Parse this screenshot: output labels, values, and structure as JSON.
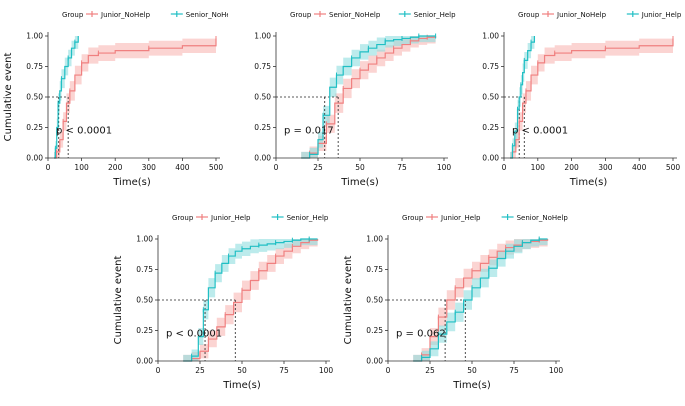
{
  "colors": {
    "red": "#F08080",
    "red_band": "#F8B8B4",
    "cyan": "#20BFC4",
    "cyan_band": "#8FDEE0",
    "axis": "#333333",
    "text": "#111111"
  },
  "chart_data": [
    {
      "type": "line",
      "legend_title": "Group",
      "legend": [
        "Junior_NoHelp",
        "Senior_NoHelp"
      ],
      "ylabel": "Cumulative event",
      "xlabel": "Time(s)",
      "xlim": [
        0,
        500
      ],
      "ylim": [
        0,
        1
      ],
      "xticks": [
        "0",
        "100",
        "200",
        "300",
        "400",
        "500"
      ],
      "yticks": [
        "0.00",
        "0.25",
        "0.50",
        "0.75",
        "1.00"
      ],
      "pvalue": "p < 0.0001",
      "medians": [
        32,
        60
      ],
      "series": [
        {
          "name": "Junior_NoHelp",
          "color": "red",
          "x": [
            18,
            25,
            35,
            45,
            55,
            65,
            80,
            100,
            120,
            150,
            200,
            300,
            400,
            500
          ],
          "y": [
            0,
            0.05,
            0.15,
            0.3,
            0.45,
            0.55,
            0.68,
            0.78,
            0.84,
            0.86,
            0.88,
            0.9,
            0.92,
            0.98
          ]
        },
        {
          "name": "Senior_NoHelp",
          "color": "cyan",
          "x": [
            18,
            22,
            26,
            30,
            35,
            40,
            50,
            60,
            70,
            80,
            90
          ],
          "y": [
            0,
            0.08,
            0.25,
            0.45,
            0.55,
            0.65,
            0.75,
            0.82,
            0.9,
            0.95,
            1.0
          ]
        }
      ]
    },
    {
      "type": "line",
      "legend_title": "Group",
      "legend": [
        "Senior_NoHelp",
        "Senior_Help"
      ],
      "ylabel": "",
      "xlabel": "Time(s)",
      "xlim": [
        0,
        100
      ],
      "ylim": [
        0,
        1
      ],
      "xticks": [
        "0",
        "25",
        "50",
        "75",
        "100"
      ],
      "yticks": [
        "0.00",
        "0.25",
        "0.50",
        "0.75",
        "1.00"
      ],
      "pvalue": "p = 0.017",
      "medians": [
        29,
        37
      ],
      "series": [
        {
          "name": "Senior_NoHelp",
          "color": "red",
          "x": [
            15,
            20,
            25,
            30,
            35,
            40,
            45,
            50,
            55,
            60,
            65,
            70,
            75,
            80,
            85,
            90,
            95
          ],
          "y": [
            0,
            0.04,
            0.12,
            0.28,
            0.45,
            0.57,
            0.65,
            0.72,
            0.77,
            0.82,
            0.86,
            0.9,
            0.93,
            0.96,
            0.98,
            0.99,
            1.0
          ]
        },
        {
          "name": "Senior_Help",
          "color": "cyan",
          "x": [
            15,
            20,
            25,
            28,
            32,
            36,
            40,
            45,
            50,
            55,
            60,
            65,
            70,
            75,
            80,
            85,
            90,
            95
          ],
          "y": [
            0,
            0.03,
            0.15,
            0.35,
            0.58,
            0.68,
            0.75,
            0.82,
            0.87,
            0.9,
            0.93,
            0.96,
            0.97,
            0.98,
            0.99,
            1.0,
            1.0,
            1.0
          ]
        }
      ]
    },
    {
      "type": "line",
      "legend_title": "Group",
      "legend": [
        "Junior_NoHelp",
        "Junior_Help"
      ],
      "ylabel": "",
      "xlabel": "Time(s)",
      "xlim": [
        0,
        500
      ],
      "ylim": [
        0,
        1
      ],
      "xticks": [
        "0",
        "100",
        "200",
        "300",
        "400",
        "500"
      ],
      "yticks": [
        "0.00",
        "0.25",
        "0.50",
        "0.75",
        "1.00"
      ],
      "pvalue": "p < 0.0001",
      "medians": [
        45,
        60
      ],
      "series": [
        {
          "name": "Junior_NoHelp",
          "color": "red",
          "x": [
            18,
            25,
            35,
            45,
            55,
            65,
            80,
            100,
            120,
            150,
            200,
            300,
            400,
            500
          ],
          "y": [
            0,
            0.05,
            0.15,
            0.3,
            0.45,
            0.55,
            0.68,
            0.78,
            0.84,
            0.86,
            0.88,
            0.9,
            0.92,
            0.98
          ]
        },
        {
          "name": "Junior_Help",
          "color": "cyan",
          "x": [
            18,
            25,
            32,
            40,
            45,
            50,
            55,
            60,
            70,
            80,
            90
          ],
          "y": [
            0,
            0.1,
            0.22,
            0.4,
            0.5,
            0.6,
            0.7,
            0.8,
            0.88,
            0.95,
            1.0
          ]
        }
      ]
    },
    {
      "type": "line",
      "legend_title": "Group",
      "legend": [
        "Junior_Help",
        "Senior_Help"
      ],
      "ylabel": "Cumulative event",
      "xlabel": "Time(s)",
      "xlim": [
        0,
        100
      ],
      "ylim": [
        0,
        1
      ],
      "xticks": [
        "0",
        "25",
        "50",
        "75",
        "100"
      ],
      "yticks": [
        "0.00",
        "0.25",
        "0.50",
        "0.75",
        "1.00"
      ],
      "pvalue": "p < 0.0001",
      "medians": [
        28,
        46
      ],
      "series": [
        {
          "name": "Junior_Help",
          "color": "red",
          "x": [
            15,
            20,
            25,
            30,
            35,
            40,
            45,
            50,
            55,
            60,
            65,
            70,
            75,
            80,
            85,
            90,
            95
          ],
          "y": [
            0,
            0.02,
            0.08,
            0.18,
            0.28,
            0.38,
            0.48,
            0.58,
            0.66,
            0.74,
            0.8,
            0.86,
            0.9,
            0.94,
            0.97,
            0.99,
            1.0
          ]
        },
        {
          "name": "Senior_Help",
          "color": "cyan",
          "x": [
            15,
            20,
            24,
            27,
            30,
            34,
            38,
            42,
            46,
            50,
            55,
            60,
            65,
            70,
            75,
            80,
            85,
            90,
            95
          ],
          "y": [
            0,
            0.04,
            0.2,
            0.42,
            0.6,
            0.72,
            0.8,
            0.86,
            0.9,
            0.92,
            0.94,
            0.95,
            0.96,
            0.97,
            0.98,
            0.99,
            1.0,
            1.0,
            1.0
          ]
        }
      ]
    },
    {
      "type": "line",
      "legend_title": "Group",
      "legend": [
        "Junior_Help",
        "Senior_NoHelp"
      ],
      "ylabel": "Cumulative event",
      "xlabel": "Time(s)",
      "xlim": [
        0,
        100
      ],
      "ylim": [
        0,
        1
      ],
      "xticks": [
        "0",
        "25",
        "50",
        "75",
        "100"
      ],
      "yticks": [
        "0.00",
        "0.25",
        "0.50",
        "0.75",
        "1.00"
      ],
      "pvalue": "p = 0.062",
      "medians": [
        34,
        46
      ],
      "series": [
        {
          "name": "Junior_Help",
          "color": "red",
          "x": [
            15,
            20,
            25,
            30,
            35,
            40,
            45,
            50,
            55,
            60,
            65,
            70,
            75,
            80,
            85,
            90,
            95
          ],
          "y": [
            0,
            0.05,
            0.2,
            0.36,
            0.5,
            0.6,
            0.68,
            0.74,
            0.8,
            0.85,
            0.9,
            0.93,
            0.95,
            0.97,
            0.98,
            0.99,
            1.0
          ]
        },
        {
          "name": "Senior_NoHelp",
          "color": "cyan",
          "x": [
            15,
            20,
            25,
            30,
            35,
            40,
            45,
            50,
            55,
            60,
            65,
            70,
            75,
            80,
            85,
            90,
            95
          ],
          "y": [
            0,
            0.03,
            0.1,
            0.22,
            0.32,
            0.4,
            0.5,
            0.6,
            0.68,
            0.76,
            0.84,
            0.9,
            0.94,
            0.97,
            0.99,
            1.0,
            1.0
          ]
        }
      ]
    }
  ]
}
